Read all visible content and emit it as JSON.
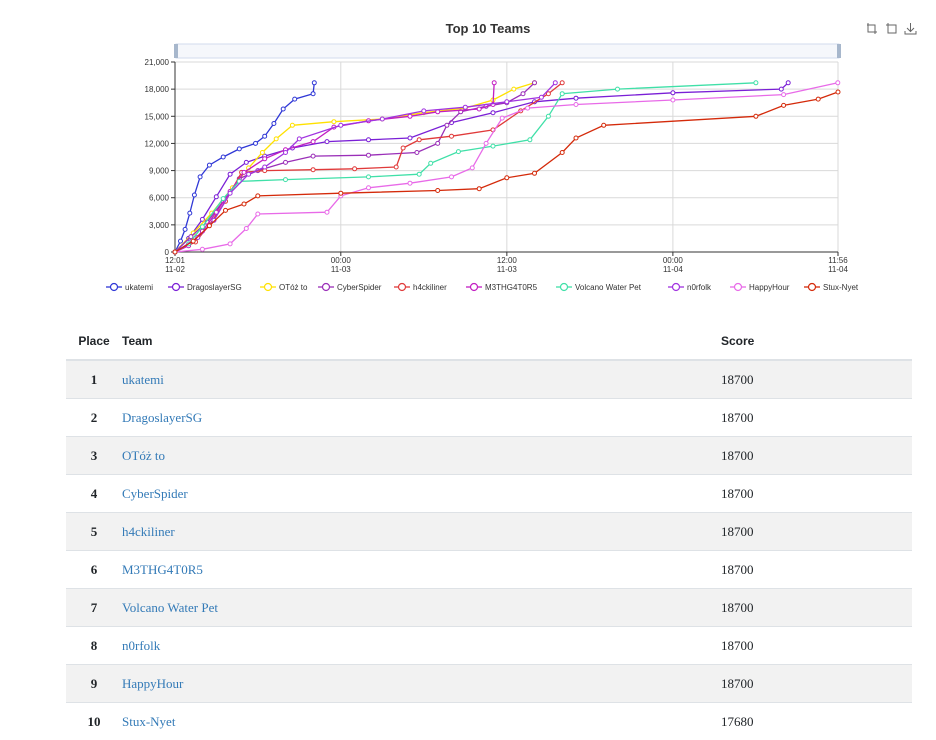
{
  "chart_title": "Top 10 Teams",
  "toolbox_icons": [
    "zoom-icon",
    "zoom-reset-icon",
    "download-icon"
  ],
  "table": {
    "headers": {
      "place": "Place",
      "team": "Team",
      "score": "Score"
    },
    "rows": [
      {
        "place": "1",
        "team": "ukatemi",
        "score": "18700"
      },
      {
        "place": "2",
        "team": "DragoslayerSG",
        "score": "18700"
      },
      {
        "place": "3",
        "team": "OTóż to",
        "score": "18700"
      },
      {
        "place": "4",
        "team": "CyberSpider",
        "score": "18700"
      },
      {
        "place": "5",
        "team": "h4ckiliner",
        "score": "18700"
      },
      {
        "place": "6",
        "team": "M3THG4T0R5",
        "score": "18700"
      },
      {
        "place": "7",
        "team": "Volcano Water Pet",
        "score": "18700"
      },
      {
        "place": "8",
        "team": "n0rfolk",
        "score": "18700"
      },
      {
        "place": "9",
        "team": "HappyHour",
        "score": "18700"
      },
      {
        "place": "10",
        "team": "Stux-Nyet",
        "score": "17680"
      }
    ]
  },
  "chart_data": {
    "type": "line",
    "title": "Top 10 Teams",
    "xlabel": "",
    "ylabel": "",
    "x_ticks": [
      {
        "time": "2022-11-02 12:01",
        "label": [
          "12:01",
          "11-02"
        ]
      },
      {
        "time": "2022-11-03 00:00",
        "label": [
          "00:00",
          "11-03"
        ]
      },
      {
        "time": "2022-11-03 12:00",
        "label": [
          "12:00",
          "11-03"
        ]
      },
      {
        "time": "2022-11-04 00:00",
        "label": [
          "00:00",
          "11-04"
        ]
      },
      {
        "time": "2022-11-04 11:56",
        "label": [
          "11:56",
          "11-04"
        ]
      }
    ],
    "xlim": [
      "2022-11-02 12:01",
      "2022-11-04 11:56"
    ],
    "ylim": [
      0,
      21000
    ],
    "y_ticks": [
      "0",
      "3,000",
      "6,000",
      "9,000",
      "12,000",
      "15,000",
      "18,000",
      "21,000"
    ],
    "grid": true,
    "legend_position": "bottom",
    "series": [
      {
        "name": "ukatemi",
        "color": "#2f37d6",
        "points": [
          [
            "2022-11-02 12:01",
            0
          ],
          [
            "2022-11-02 12:25",
            1200
          ],
          [
            "2022-11-02 12:45",
            2500
          ],
          [
            "2022-11-02 13:05",
            4300
          ],
          [
            "2022-11-02 13:25",
            6300
          ],
          [
            "2022-11-02 13:50",
            8300
          ],
          [
            "2022-11-02 14:30",
            9600
          ],
          [
            "2022-11-02 15:30",
            10500
          ],
          [
            "2022-11-02 16:40",
            11400
          ],
          [
            "2022-11-02 17:50",
            12000
          ],
          [
            "2022-11-02 18:30",
            12800
          ],
          [
            "2022-11-02 19:10",
            14200
          ],
          [
            "2022-11-02 19:50",
            15800
          ],
          [
            "2022-11-02 20:40",
            16900
          ],
          [
            "2022-11-02 22:00",
            17500
          ],
          [
            "2022-11-02 22:05",
            18700
          ]
        ]
      },
      {
        "name": "DragoslayerSG",
        "color": "#7a1fd6",
        "points": [
          [
            "2022-11-02 12:01",
            0
          ],
          [
            "2022-11-02 13:00",
            1500
          ],
          [
            "2022-11-02 14:00",
            3600
          ],
          [
            "2022-11-02 15:00",
            6100
          ],
          [
            "2022-11-02 16:00",
            8600
          ],
          [
            "2022-11-02 17:10",
            9900
          ],
          [
            "2022-11-02 18:30",
            10600
          ],
          [
            "2022-11-02 20:30",
            11500
          ],
          [
            "2022-11-02 23:00",
            12200
          ],
          [
            "2022-11-03 02:00",
            12400
          ],
          [
            "2022-11-03 05:00",
            12600
          ],
          [
            "2022-11-03 08:00",
            14300
          ],
          [
            "2022-11-03 11:00",
            15400
          ],
          [
            "2022-11-03 14:00",
            16600
          ],
          [
            "2022-11-03 17:00",
            17000
          ],
          [
            "2022-11-04 00:00",
            17600
          ],
          [
            "2022-11-04 07:50",
            18000
          ],
          [
            "2022-11-04 08:20",
            18700
          ]
        ]
      },
      {
        "name": "OTóż to",
        "color": "#ffe100",
        "points": [
          [
            "2022-11-02 12:01",
            0
          ],
          [
            "2022-11-02 13:20",
            2100
          ],
          [
            "2022-11-02 14:40",
            4300
          ],
          [
            "2022-11-02 16:10",
            7100
          ],
          [
            "2022-11-02 17:20",
            9300
          ],
          [
            "2022-11-02 18:20",
            11000
          ],
          [
            "2022-11-02 19:20",
            12500
          ],
          [
            "2022-11-02 20:30",
            14000
          ],
          [
            "2022-11-02 23:30",
            14400
          ],
          [
            "2022-11-03 03:00",
            14700
          ],
          [
            "2022-11-03 06:00",
            15400
          ],
          [
            "2022-11-03 09:00",
            15900
          ],
          [
            "2022-11-03 11:00",
            16800
          ],
          [
            "2022-11-03 12:30",
            18000
          ],
          [
            "2022-11-03 14:00",
            18700
          ]
        ]
      },
      {
        "name": "CyberSpider",
        "color": "#9a2fb8",
        "points": [
          [
            "2022-11-02 12:01",
            0
          ],
          [
            "2022-11-02 13:10",
            1700
          ],
          [
            "2022-11-02 14:20",
            3300
          ],
          [
            "2022-11-02 15:30",
            5600
          ],
          [
            "2022-11-02 16:40",
            8100
          ],
          [
            "2022-11-02 18:00",
            9000
          ],
          [
            "2022-11-02 20:00",
            9900
          ],
          [
            "2022-11-02 22:00",
            10600
          ],
          [
            "2022-11-03 02:00",
            10700
          ],
          [
            "2022-11-03 05:30",
            11000
          ],
          [
            "2022-11-03 07:00",
            12000
          ],
          [
            "2022-11-03 07:40",
            14000
          ],
          [
            "2022-11-03 08:40",
            15500
          ],
          [
            "2022-11-03 10:30",
            16100
          ],
          [
            "2022-11-03 12:00",
            16500
          ],
          [
            "2022-11-03 13:10",
            17500
          ],
          [
            "2022-11-03 14:00",
            18700
          ]
        ]
      },
      {
        "name": "h4ckiliner",
        "color": "#e03a3a",
        "points": [
          [
            "2022-11-02 12:01",
            0
          ],
          [
            "2022-11-02 13:30",
            1100
          ],
          [
            "2022-11-02 14:30",
            3000
          ],
          [
            "2022-11-02 15:40",
            5600
          ],
          [
            "2022-11-02 16:50",
            8800
          ],
          [
            "2022-11-02 18:30",
            9000
          ],
          [
            "2022-11-02 22:00",
            9100
          ],
          [
            "2022-11-03 01:00",
            9200
          ],
          [
            "2022-11-03 04:00",
            9400
          ],
          [
            "2022-11-03 04:30",
            11500
          ],
          [
            "2022-11-03 05:40",
            12400
          ],
          [
            "2022-11-03 08:00",
            12800
          ],
          [
            "2022-11-03 11:00",
            13500
          ],
          [
            "2022-11-03 13:00",
            15600
          ],
          [
            "2022-11-03 15:00",
            17500
          ],
          [
            "2022-11-03 16:00",
            18700
          ]
        ]
      },
      {
        "name": "M3THG4T0R5",
        "color": "#c21ec2",
        "points": [
          [
            "2022-11-02 12:01",
            0
          ],
          [
            "2022-11-02 13:00",
            700
          ],
          [
            "2022-11-02 14:00",
            2300
          ],
          [
            "2022-11-02 15:00",
            4400
          ],
          [
            "2022-11-02 16:00",
            6700
          ],
          [
            "2022-11-02 17:00",
            8800
          ],
          [
            "2022-11-02 18:30",
            10300
          ],
          [
            "2022-11-02 20:00",
            11300
          ],
          [
            "2022-11-02 22:00",
            12200
          ],
          [
            "2022-11-02 23:30",
            13800
          ],
          [
            "2022-11-03 02:00",
            14500
          ],
          [
            "2022-11-03 05:00",
            15000
          ],
          [
            "2022-11-03 07:00",
            15500
          ],
          [
            "2022-11-03 10:00",
            15800
          ],
          [
            "2022-11-03 11:00",
            16300
          ],
          [
            "2022-11-03 11:05",
            18700
          ]
        ]
      },
      {
        "name": "Volcano Water Pet",
        "color": "#40e0a8",
        "points": [
          [
            "2022-11-02 12:01",
            0
          ],
          [
            "2022-11-02 13:00",
            900
          ],
          [
            "2022-11-02 14:00",
            2800
          ],
          [
            "2022-11-02 15:30",
            5900
          ],
          [
            "2022-11-02 16:40",
            7800
          ],
          [
            "2022-11-02 20:00",
            8000
          ],
          [
            "2022-11-03 02:00",
            8300
          ],
          [
            "2022-11-03 05:40",
            8600
          ],
          [
            "2022-11-03 06:30",
            9800
          ],
          [
            "2022-11-03 08:30",
            11100
          ],
          [
            "2022-11-03 11:00",
            11700
          ],
          [
            "2022-11-03 13:40",
            12400
          ],
          [
            "2022-11-03 15:00",
            15000
          ],
          [
            "2022-11-03 16:00",
            17500
          ],
          [
            "2022-11-03 20:00",
            18000
          ],
          [
            "2022-11-04 06:00",
            18700
          ]
        ]
      },
      {
        "name": "n0rfolk",
        "color": "#a133e0",
        "points": [
          [
            "2022-11-02 12:01",
            0
          ],
          [
            "2022-11-02 13:40",
            1600
          ],
          [
            "2022-11-02 14:50",
            3500
          ],
          [
            "2022-11-02 16:00",
            6500
          ],
          [
            "2022-11-02 17:20",
            8600
          ],
          [
            "2022-11-02 18:30",
            9400
          ],
          [
            "2022-11-02 20:00",
            11000
          ],
          [
            "2022-11-02 21:00",
            12500
          ],
          [
            "2022-11-03 00:00",
            14000
          ],
          [
            "2022-11-03 03:00",
            14700
          ],
          [
            "2022-11-03 06:00",
            15600
          ],
          [
            "2022-11-03 09:00",
            16000
          ],
          [
            "2022-11-03 12:00",
            16600
          ],
          [
            "2022-11-03 14:30",
            17100
          ],
          [
            "2022-11-03 15:30",
            18700
          ]
        ]
      },
      {
        "name": "HappyHour",
        "color": "#e86ae8",
        "points": [
          [
            "2022-11-02 12:01",
            0
          ],
          [
            "2022-11-02 14:00",
            300
          ],
          [
            "2022-11-02 16:00",
            900
          ],
          [
            "2022-11-02 17:10",
            2600
          ],
          [
            "2022-11-02 18:00",
            4200
          ],
          [
            "2022-11-02 23:00",
            4400
          ],
          [
            "2022-11-03 00:00",
            6200
          ],
          [
            "2022-11-03 02:00",
            7100
          ],
          [
            "2022-11-03 05:00",
            7600
          ],
          [
            "2022-11-03 08:00",
            8300
          ],
          [
            "2022-11-03 09:30",
            9300
          ],
          [
            "2022-11-03 10:30",
            12000
          ],
          [
            "2022-11-03 11:40",
            14800
          ],
          [
            "2022-11-03 13:30",
            15900
          ],
          [
            "2022-11-03 17:00",
            16300
          ],
          [
            "2022-11-04 00:00",
            16800
          ],
          [
            "2022-11-04 08:00",
            17400
          ],
          [
            "2022-11-04 11:55",
            18700
          ]
        ]
      },
      {
        "name": "Stux-Nyet",
        "color": "#d42a0a",
        "points": [
          [
            "2022-11-02 12:01",
            0
          ],
          [
            "2022-11-02 13:20",
            1200
          ],
          [
            "2022-11-02 14:30",
            2900
          ],
          [
            "2022-11-02 15:40",
            4600
          ],
          [
            "2022-11-02 17:00",
            5300
          ],
          [
            "2022-11-02 18:00",
            6200
          ],
          [
            "2022-11-03 00:00",
            6500
          ],
          [
            "2022-11-03 07:00",
            6800
          ],
          [
            "2022-11-03 10:00",
            7000
          ],
          [
            "2022-11-03 12:00",
            8200
          ],
          [
            "2022-11-03 14:00",
            8700
          ],
          [
            "2022-11-03 16:00",
            11000
          ],
          [
            "2022-11-03 17:00",
            12600
          ],
          [
            "2022-11-03 19:00",
            14000
          ],
          [
            "2022-11-04 06:00",
            15000
          ],
          [
            "2022-11-04 08:00",
            16200
          ],
          [
            "2022-11-04 10:30",
            16900
          ],
          [
            "2022-11-04 11:56",
            17680
          ]
        ]
      }
    ]
  }
}
